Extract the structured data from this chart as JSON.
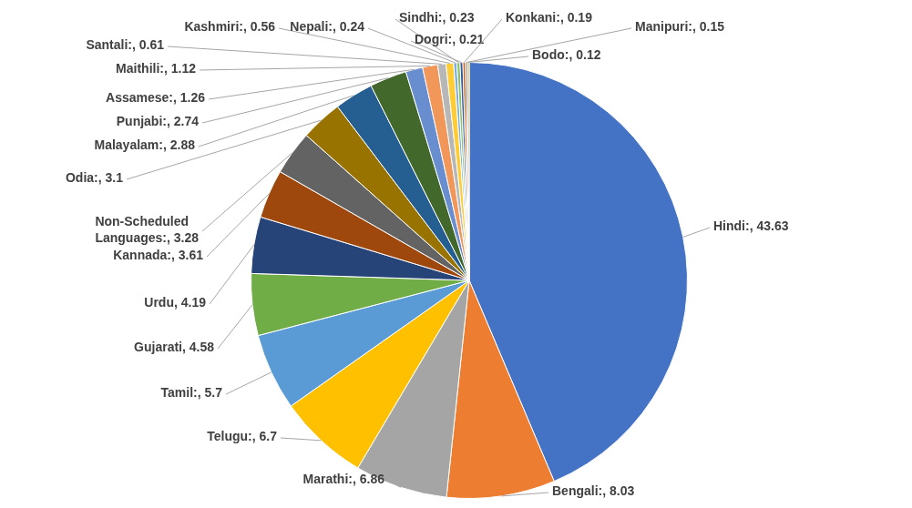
{
  "chart_data": {
    "type": "pie",
    "categories": [
      "Hindi",
      "Bengali",
      "Marathi",
      "Telugu",
      "Tamil",
      "Gujarati",
      "Urdu",
      "Kannada",
      "Non-Scheduled Languages",
      "Odia",
      "Malayalam",
      "Punjabi",
      "Assamese",
      "Maithili",
      "Santali",
      "Kashmiri",
      "Nepali",
      "Sindhi",
      "Dogri",
      "Konkani",
      "Manipuri",
      "Bodo"
    ],
    "values": [
      43.63,
      8.03,
      6.86,
      6.7,
      5.7,
      4.58,
      4.19,
      3.61,
      3.28,
      3.1,
      2.88,
      2.74,
      1.26,
      1.12,
      0.61,
      0.56,
      0.24,
      0.23,
      0.21,
      0.19,
      0.15,
      0.12
    ],
    "value_labels": [
      ":, 43.63",
      ":, 8.03",
      ":, 6.86",
      ":, 6.7",
      ":, 5.7",
      ", 4.58",
      ", 4.19",
      ":, 3.61",
      ":, 3.28",
      ":, 3.1",
      ":, 2.88",
      ":, 2.74",
      ":, 1.26",
      ":, 1.12",
      ":, 0.61",
      ":, 0.56",
      ":, 0.24",
      ":, 0.23",
      ":, 0.21",
      ":, 0.19",
      ":, 0.15",
      ":, 0.12"
    ],
    "colors": [
      "#4472c4",
      "#ed7d31",
      "#a5a5a5",
      "#ffc000",
      "#5b9bd5",
      "#70ad47",
      "#264478",
      "#9e480e",
      "#636363",
      "#997300",
      "#255e91",
      "#43682b",
      "#698ed0",
      "#f1975a",
      "#b7b7b7",
      "#ffcd33",
      "#7cafdd",
      "#8cc168",
      "#335aa1",
      "#d26012",
      "#848484",
      "#cc9a00"
    ]
  }
}
